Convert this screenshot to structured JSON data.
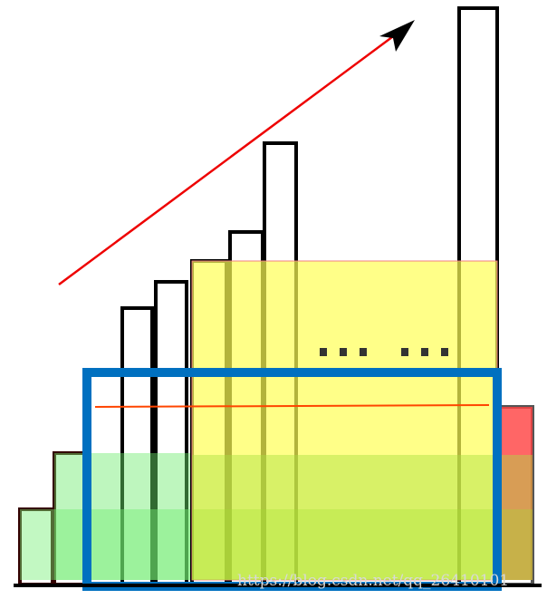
{
  "watermark": "https://blog.csdn.net/qq_26410101"
}
